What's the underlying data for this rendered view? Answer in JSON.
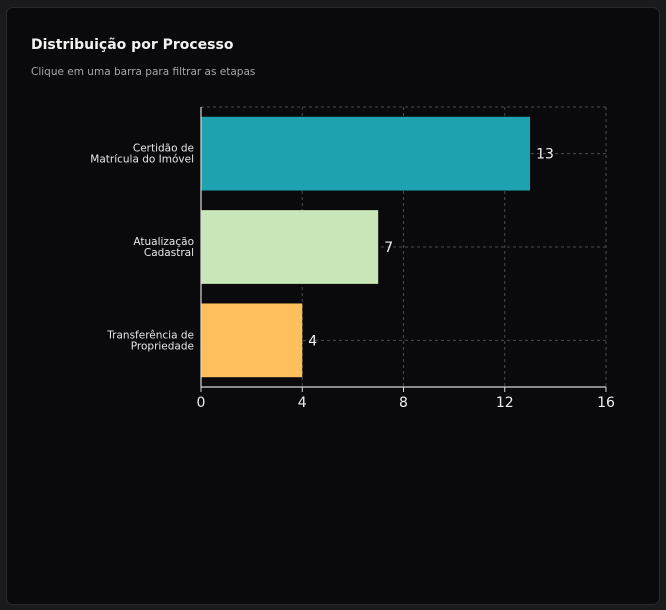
{
  "card": {
    "title": "Distribuição por Processo",
    "subtitle": "Clique em uma barra para filtrar as etapas"
  },
  "chart_data": {
    "type": "bar",
    "orientation": "horizontal",
    "categories": [
      [
        "Certidão de",
        "Matrícula do Imóvel"
      ],
      [
        "Atualização",
        "Cadastral"
      ],
      [
        "Transferência de",
        "Propriedade"
      ]
    ],
    "values": [
      13,
      7,
      4
    ],
    "colors": [
      "#1fa2b0",
      "#c8e6b8",
      "#ffbf5c"
    ],
    "xlim": [
      0,
      16
    ],
    "xticks": [
      0,
      4,
      8,
      12,
      16
    ],
    "grid": true,
    "data_labels": true,
    "title": "",
    "xlabel": "",
    "ylabel": ""
  }
}
